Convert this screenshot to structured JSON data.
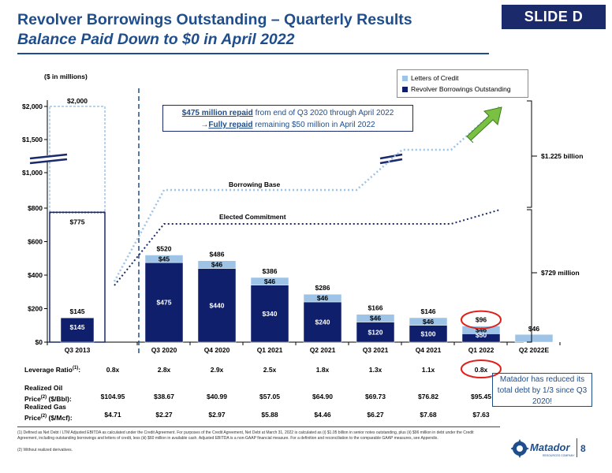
{
  "header": {
    "title": "Revolver Borrowings Outstanding – Quarterly Results",
    "subtitle": "Balance Paid Down to $0 in April 2022",
    "slide_badge": "SLIDE D"
  },
  "units_label": "($ in millions)",
  "legend": {
    "loc_label": "Letters of Credit",
    "rev_label": "Revolver Borrowings Outstanding"
  },
  "callout": {
    "line1_bold": "$475 million repaid",
    "line1_rest": " from end of Q3 2020 through April 2022",
    "line2_arrow": "→",
    "line2_bold": "Fully repaid",
    "line2_rest": " remaining $50 million in April 2022"
  },
  "brackets": {
    "upper": "$1.225 billion",
    "lower": "$729 million"
  },
  "line_labels": {
    "borrowing_base": "Borrowing Base",
    "elected_commitment": "Elected Commitment"
  },
  "chart_data": {
    "type": "bar",
    "stacked": true,
    "categories": [
      "Q3 2013",
      "Q3 2020",
      "Q4 2020",
      "Q1 2021",
      "Q2 2021",
      "Q3 2021",
      "Q4 2021",
      "Q1 2022",
      "Q2 2022E"
    ],
    "series": [
      {
        "name": "Revolver Borrowings Outstanding",
        "color": "#0f1f6b",
        "values": [
          145,
          475,
          440,
          340,
          240,
          120,
          100,
          50,
          0
        ],
        "labels": [
          "$145",
          "$475",
          "$440",
          "$340",
          "$240",
          "$120",
          "$100",
          "$50",
          ""
        ]
      },
      {
        "name": "Letters of Credit",
        "color": "#9dc3e6",
        "values": [
          0,
          45,
          46,
          46,
          46,
          46,
          46,
          46,
          46
        ],
        "labels": [
          "",
          "$45",
          "$46",
          "$46",
          "$46",
          "$46",
          "$46",
          "$46",
          "$46"
        ]
      }
    ],
    "totals": [
      "$145",
      "$520",
      "$486",
      "$386",
      "$286",
      "$166",
      "$146",
      "$96",
      ""
    ],
    "q3_2013_capacity": {
      "borrowing_base": 2000,
      "elected_commitment": 775,
      "borrowing_base_label": "$2,000",
      "elected_commitment_label": "$775"
    },
    "y_ticks": [
      "$0",
      "$200",
      "$400",
      "$600",
      "$800",
      "$1,000",
      "$1,500",
      "$2,000"
    ],
    "y_scale": "broken axis between $800 and $1,000",
    "lines": [
      {
        "name": "Borrowing Base",
        "style": "dotted",
        "color": "#9dc3e6"
      },
      {
        "name": "Elected Commitment",
        "style": "dotted",
        "color": "#1b2a6b"
      }
    ],
    "highlight_category": "Q1 2022"
  },
  "rows": {
    "leverage": {
      "label": "Leverage Ratio",
      "sup": "(1)",
      "suffix": ":",
      "values": [
        "0.8x",
        "2.8x",
        "2.9x",
        "2.5x",
        "1.8x",
        "1.3x",
        "1.1x",
        "0.8x"
      ]
    },
    "oil": {
      "label1": "Realized Oil",
      "label2a": "Price",
      "sup": "(2)",
      "label2b": " ($/Bbl):",
      "values": [
        "$104.95",
        "$38.67",
        "$40.99",
        "$57.05",
        "$64.90",
        "$69.73",
        "$76.82",
        "$95.45"
      ]
    },
    "gas": {
      "label1": "Realized Gas",
      "label2a": "Price",
      "sup": "(2)",
      "label2b": " ($/Mcf):",
      "values": [
        "$4.71",
        "$2.27",
        "$2.97",
        "$5.88",
        "$4.46",
        "$6.27",
        "$7.68",
        "$7.63"
      ]
    }
  },
  "note_box": "Matador has reduced its total debt by 1/3 since Q3 2020!",
  "footnotes": [
    "(1)  Defined as Net Debt / LTM Adjusted EBITDA as calculated under the Credit Agreement. For purposes of the Credit Agreement, Net Debt at March 31, 2022 is calculated as (i) $1.05 billion in senior notes outstanding, plus (ii) $96 million in debt under the Credit Agreement, including outstanding borrowings and letters of credit, less (iii) $60 million in available cash. Adjusted EBITDA is a non-GAAP financial measure. For a definition and reconciliation to the comparable GAAP measures, see Appendix.",
    "(2)  Without realized derivatives."
  ],
  "footer": {
    "page_number": "8",
    "logo_text": "Matador",
    "logo_sub": "RESOURCES COMPANY"
  }
}
